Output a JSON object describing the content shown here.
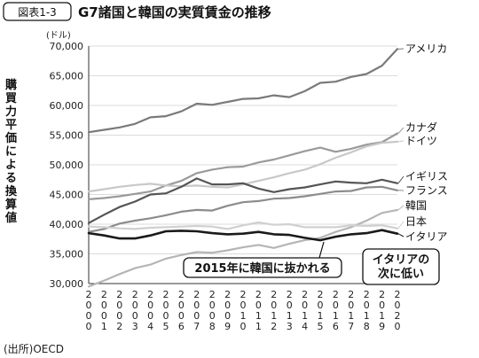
{
  "figure": {
    "label": "図表1-3",
    "title": "G7諸国と韓国の実質賃金の推移",
    "source": "(出所)OECD"
  },
  "chart_data": {
    "type": "line",
    "title": "G7諸国と韓国の実質賃金の推移",
    "unit": "(ドル)",
    "ylabel": "購買力平価による換算値",
    "xlabel": "",
    "ylim": [
      30000,
      70000
    ],
    "yticks": [
      30000,
      35000,
      40000,
      45000,
      50000,
      55000,
      60000,
      65000,
      70000
    ],
    "ytick_labels": [
      "30,000",
      "35,000",
      "40,000",
      "45,000",
      "50,000",
      "55,000",
      "60,000",
      "65,000",
      "70,000"
    ],
    "grid": true,
    "x": [
      "2000",
      "2001",
      "2002",
      "2003",
      "2004",
      "2005",
      "2006",
      "2007",
      "2008",
      "2009",
      "2010",
      "2011",
      "2012",
      "2013",
      "2014",
      "2015",
      "2016",
      "2017",
      "2018",
      "2019",
      "2020"
    ],
    "series": [
      {
        "name": "アメリカ",
        "color": "#7a7a7a",
        "values": [
          55500,
          55900,
          56300,
          56900,
          58000,
          58200,
          59000,
          60300,
          60100,
          60600,
          61100,
          61200,
          61700,
          61400,
          62400,
          63800,
          64000,
          64800,
          65300,
          66700,
          69500
        ]
      },
      {
        "name": "カナダ",
        "color": "#9a9a9a",
        "values": [
          44200,
          44400,
          44700,
          45100,
          45500,
          46500,
          47300,
          48600,
          49200,
          49600,
          49700,
          50400,
          50900,
          51600,
          52300,
          52900,
          52200,
          52700,
          53400,
          53800,
          55300
        ]
      },
      {
        "name": "ドイツ",
        "color": "#c8c8c8",
        "values": [
          45500,
          45900,
          46300,
          46600,
          46800,
          46500,
          46400,
          46500,
          46300,
          46200,
          46700,
          47300,
          47900,
          48600,
          49200,
          50100,
          51200,
          52100,
          53100,
          53700,
          53900
        ]
      },
      {
        "name": "イギリス",
        "color": "#555555",
        "values": [
          40200,
          41600,
          42900,
          43800,
          45000,
          45200,
          46300,
          47700,
          46700,
          46700,
          46900,
          46000,
          45400,
          45900,
          46200,
          46700,
          47200,
          47000,
          46900,
          47500,
          46900
        ]
      },
      {
        "name": "フランス",
        "color": "#8c8c8c",
        "values": [
          38700,
          39200,
          40100,
          40600,
          41000,
          41500,
          42100,
          42400,
          42300,
          43100,
          43700,
          43900,
          44300,
          44400,
          44700,
          45100,
          45500,
          45600,
          46200,
          46300,
          45700
        ]
      },
      {
        "name": "韓国",
        "color": "#b5b5b5",
        "values": [
          29500,
          30500,
          31600,
          32600,
          33200,
          34200,
          34800,
          35300,
          35200,
          35600,
          36100,
          36500,
          36000,
          36700,
          37300,
          37700,
          38700,
          39500,
          40600,
          41900,
          42400
        ]
      },
      {
        "name": "日本",
        "color": "#d0d0d0",
        "values": [
          39600,
          39500,
          39300,
          39200,
          39400,
          39500,
          39600,
          39700,
          39600,
          39200,
          39800,
          40300,
          39900,
          40000,
          39500,
          39500,
          39500,
          39800,
          39700,
          39800,
          39300
        ]
      },
      {
        "name": "イタリア",
        "color": "#1a1a1a",
        "values": [
          38500,
          38100,
          37600,
          37600,
          38100,
          38800,
          38900,
          38800,
          38500,
          38300,
          38400,
          38700,
          38300,
          38200,
          37700,
          37300,
          37900,
          38300,
          38500,
          39000,
          38400
        ]
      }
    ],
    "annotations": [
      {
        "text": "2015年に韓国に抜かれる"
      },
      {
        "lines": [
          "イタリアの",
          "次に低い"
        ]
      }
    ]
  }
}
